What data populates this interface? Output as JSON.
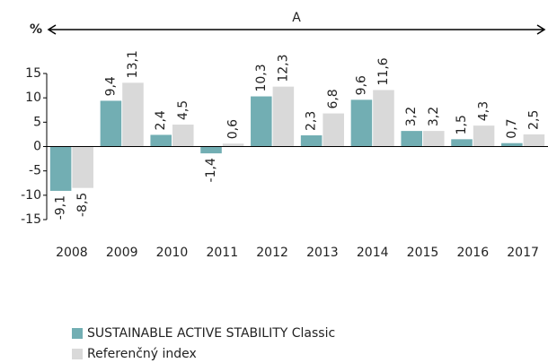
{
  "chart_data": {
    "type": "bar",
    "annotations": [
      "%",
      "A"
    ],
    "categories": [
      "2008",
      "2009",
      "2010",
      "2011",
      "2012",
      "2013",
      "2014",
      "2015",
      "2016",
      "2017"
    ],
    "series": [
      {
        "name": "SUSTAINABLE ACTIVE STABILITY Classic",
        "color": "#72aeb3",
        "values": [
          -9.1,
          9.4,
          2.4,
          -1.4,
          10.3,
          2.3,
          9.6,
          3.2,
          1.5,
          0.7
        ],
        "value_labels": [
          "-9,1",
          "9,4",
          "2,4",
          "-1,4",
          "10,3",
          "2,3",
          "9,6",
          "3,2",
          "1,5",
          "0,7"
        ]
      },
      {
        "name": "Referenčný index",
        "color": "#d9d9d9",
        "values": [
          -8.5,
          13.1,
          4.5,
          0.6,
          12.3,
          6.8,
          11.6,
          3.2,
          4.3,
          2.5
        ],
        "value_labels": [
          "-8,5",
          "13,1",
          "4,5",
          "0,6",
          "12,3",
          "6,8",
          "11,6",
          "3,2",
          "4,3",
          "2,5"
        ]
      }
    ],
    "ylim": [
      -15,
      15
    ],
    "yticks": [
      15,
      10,
      5,
      0,
      -5,
      -10,
      -15
    ],
    "grid": false,
    "legend": "bottom"
  }
}
